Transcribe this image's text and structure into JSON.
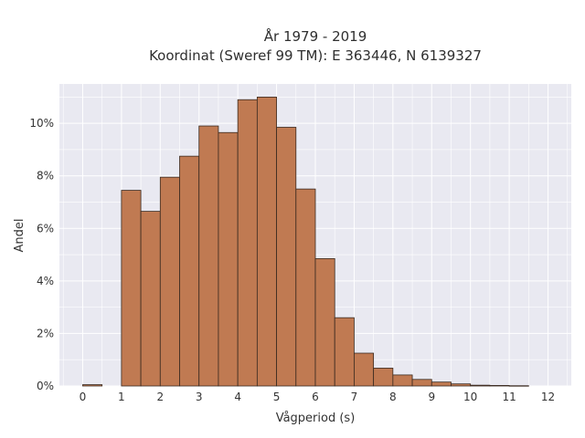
{
  "chart_data": {
    "type": "bar",
    "title_line1": "År 1979 - 2019",
    "title_line2": "Koordinat (Sweref 99 TM): E 363446, N 6139327",
    "xlabel": "Vågperiod (s)",
    "ylabel": "Andel",
    "xlim": [
      -0.6,
      12.6
    ],
    "ylim": [
      0,
      11.5
    ],
    "x_ticks": [
      0,
      1,
      2,
      3,
      4,
      5,
      6,
      7,
      8,
      9,
      10,
      11,
      12
    ],
    "y_ticks": [
      0,
      2,
      4,
      6,
      8,
      10
    ],
    "y_tick_labels": [
      "0%",
      "2%",
      "4%",
      "6%",
      "8%",
      "10%"
    ],
    "grid": true,
    "bin_width": 0.5,
    "bins": [
      {
        "x0": 0.0,
        "value": 0.05
      },
      {
        "x0": 1.0,
        "value": 7.45
      },
      {
        "x0": 1.5,
        "value": 6.65
      },
      {
        "x0": 2.0,
        "value": 7.95
      },
      {
        "x0": 2.5,
        "value": 8.75
      },
      {
        "x0": 3.0,
        "value": 9.9
      },
      {
        "x0": 3.5,
        "value": 9.65
      },
      {
        "x0": 4.0,
        "value": 10.9
      },
      {
        "x0": 4.5,
        "value": 11.0
      },
      {
        "x0": 5.0,
        "value": 9.85
      },
      {
        "x0": 5.5,
        "value": 7.5
      },
      {
        "x0": 6.0,
        "value": 4.85
      },
      {
        "x0": 6.5,
        "value": 2.6
      },
      {
        "x0": 7.0,
        "value": 1.25
      },
      {
        "x0": 7.5,
        "value": 0.68
      },
      {
        "x0": 8.0,
        "value": 0.42
      },
      {
        "x0": 8.5,
        "value": 0.25
      },
      {
        "x0": 9.0,
        "value": 0.15
      },
      {
        "x0": 9.5,
        "value": 0.08
      },
      {
        "x0": 10.0,
        "value": 0.03
      },
      {
        "x0": 10.5,
        "value": 0.02
      },
      {
        "x0": 11.0,
        "value": 0.01
      }
    ],
    "colors": {
      "bar_fill": "#c07a52",
      "bar_edge": "#3a2a20",
      "plot_background": "#e9e9f1",
      "grid": "#ffffff"
    }
  }
}
